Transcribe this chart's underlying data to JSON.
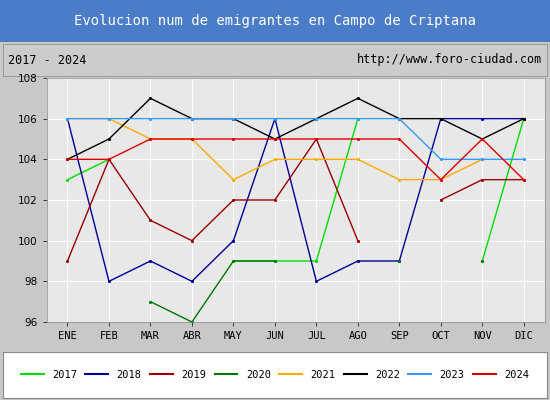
{
  "title": "Evolucion num de emigrantes en Campo de Criptana",
  "subtitle_left": "2017 - 2024",
  "subtitle_right": "http://www.foro-ciudad.com",
  "months": [
    "ENE",
    "FEB",
    "MAR",
    "ABR",
    "MAY",
    "JUN",
    "JUL",
    "AGO",
    "SEP",
    "OCT",
    "NOV",
    "DIC"
  ],
  "ylim": [
    96,
    108
  ],
  "yticks": [
    96,
    98,
    100,
    102,
    104,
    106,
    108
  ],
  "series": {
    "2017": {
      "color": "#00dd00",
      "data": [
        103,
        104,
        null,
        null,
        99,
        99,
        99,
        106,
        null,
        null,
        99,
        106
      ]
    },
    "2018": {
      "color": "#000099",
      "data": [
        106,
        98,
        99,
        98,
        100,
        106,
        98,
        99,
        99,
        106,
        106,
        106
      ]
    },
    "2019": {
      "color": "#990000",
      "data": [
        99,
        104,
        101,
        100,
        102,
        102,
        105,
        100,
        null,
        102,
        103,
        103
      ]
    },
    "2020": {
      "color": "#007700",
      "data": [
        null,
        null,
        97,
        96,
        99,
        99,
        null,
        null,
        99,
        null,
        99,
        null
      ]
    },
    "2021": {
      "color": "#ffaa00",
      "data": [
        106,
        106,
        105,
        105,
        103,
        104,
        104,
        104,
        103,
        103,
        104,
        null
      ]
    },
    "2022": {
      "color": "#000000",
      "data": [
        104,
        105,
        107,
        106,
        106,
        105,
        106,
        107,
        106,
        106,
        105,
        106
      ]
    },
    "2023": {
      "color": "#3399ff",
      "data": [
        106,
        106,
        106,
        106,
        106,
        106,
        106,
        106,
        106,
        104,
        104,
        104
      ]
    },
    "2024": {
      "color": "#dd0000",
      "data": [
        104,
        104,
        105,
        105,
        105,
        105,
        105,
        105,
        105,
        103,
        105,
        103
      ]
    }
  },
  "title_bg_color": "#4a7cc7",
  "title_text_color": "#ffffff",
  "plot_bg_color": "#e8e8e8",
  "header_bg_color": "#cccccc",
  "grid_color": "#ffffff",
  "fig_width": 5.5,
  "fig_height": 4.0,
  "dpi": 100
}
